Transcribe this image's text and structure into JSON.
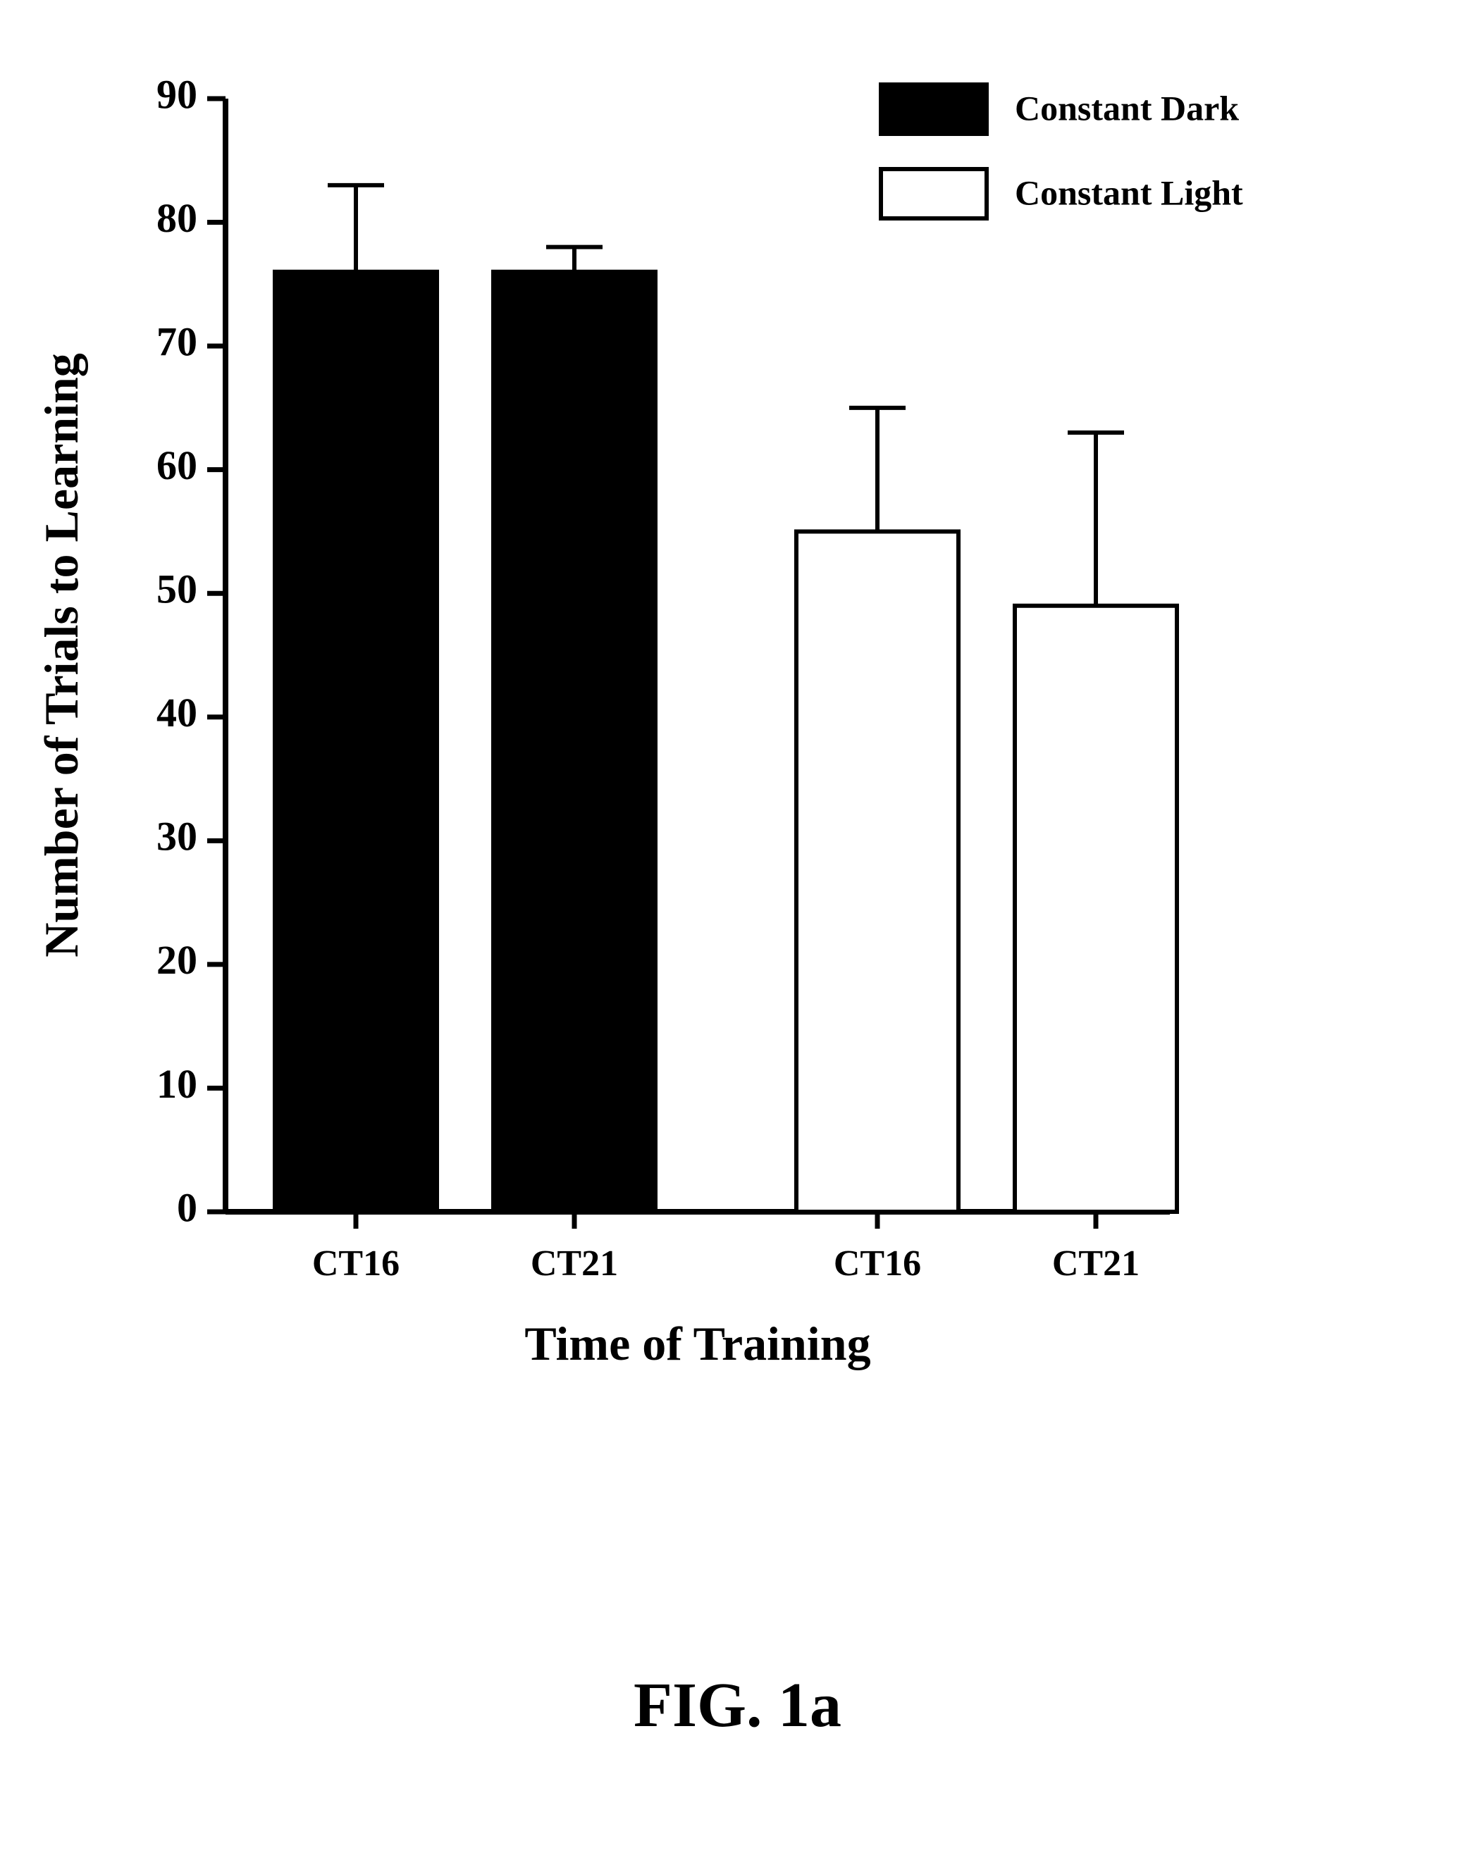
{
  "chart": {
    "type": "bar",
    "background_color": "#ffffff",
    "ylabel": "Number of Trials to Learning",
    "xlabel": "Time of Training",
    "ylabel_fontsize": 68,
    "xlabel_fontsize": 68,
    "ylabel_fontweight": "bold",
    "xlabel_fontweight": "bold",
    "axis_line_width": 8,
    "tick_line_width": 7,
    "tick_label_fontsize": 58,
    "tick_label_fontweight": "bold",
    "x_tick_fontsize": 52,
    "x_tick_fontweight": "bold",
    "ylim_min": 0,
    "ylim_max": 90,
    "ytick_step": 10,
    "categories": [
      "CT16",
      "CT21",
      "CT16",
      "CT21"
    ],
    "values": [
      76,
      76,
      55,
      49
    ],
    "errors": [
      7,
      2,
      10,
      14
    ],
    "bar_fill_colors": [
      "#000000",
      "#000000",
      "#ffffff",
      "#ffffff"
    ],
    "bar_stroke_color": "#000000",
    "bar_stroke_width": 6,
    "error_bar_line_width": 6,
    "error_cap_width": 40,
    "legend": {
      "items": [
        {
          "label": "Constant Dark",
          "fill": "#000000",
          "stroke": "#000000"
        },
        {
          "label": "Constant Light",
          "fill": "#ffffff",
          "stroke": "#000000"
        }
      ],
      "swatch_width": 150,
      "swatch_height": 70,
      "swatch_stroke_width": 6,
      "label_fontsize": 50,
      "label_fontweight": "bold"
    }
  },
  "caption": {
    "text": "FIG. 1a",
    "fontsize": 90,
    "fontweight": "bold"
  }
}
